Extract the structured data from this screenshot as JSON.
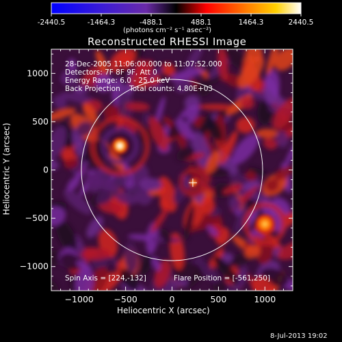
{
  "colorbar": {
    "ticks": [
      "-2440.5",
      "-1464.3",
      "-488.1",
      "488.1",
      "1464.3",
      "2440.5"
    ],
    "units_label": "(photons cm⁻² s⁻¹ asec⁻²)",
    "min": -2440.5,
    "max": 2440.5
  },
  "plot": {
    "title": "Reconstructed RHESSI Image",
    "xlabel": "Heliocentric X (arcsec)",
    "ylabel": "Heliocentric Y (arcsec)",
    "info_lines": [
      "28-Dec-2005 11:06:00.000 to 11:07:52.000",
      "Detectors: 7F 8F 9F, Att 0",
      "Energy Range: 6.0 - 25.0 keV",
      "Back Projection    Total counts: 4.80E+03"
    ],
    "spin_axis": "Spin Axis = [224,-132]",
    "flare_position": "Flare Position = [-561,250]",
    "footer_date": "8-Jul-2013 19:02"
  },
  "chart_data": {
    "type": "heatmap",
    "title": "Reconstructed RHESSI Image",
    "xlabel": "Heliocentric X (arcsec)",
    "ylabel": "Heliocentric Y (arcsec)",
    "xlim": [
      -1300,
      1300
    ],
    "ylim": [
      -1250,
      1250
    ],
    "x_ticks": [
      -1000,
      -500,
      0,
      500,
      1000
    ],
    "y_ticks": [
      -1000,
      -500,
      0,
      500,
      1000
    ],
    "x_tick_labels": [
      "−1000",
      "−500",
      "0",
      "500",
      "1000"
    ],
    "y_tick_labels": [
      "−1000",
      "−500",
      "0",
      "500",
      "1000"
    ],
    "color_range": [
      -2440.5,
      2440.5
    ],
    "solar_disk": {
      "center": [
        0,
        0
      ],
      "radius_arcsec": 976
    },
    "spin_axis_arcsec": [
      224,
      -132
    ],
    "flare_position_arcsec": [
      -561,
      250
    ],
    "bright_sources_arcsec": [
      [
        -561,
        250
      ],
      [
        1000,
        -560
      ],
      [
        230,
        -130
      ]
    ],
    "grid": false
  }
}
